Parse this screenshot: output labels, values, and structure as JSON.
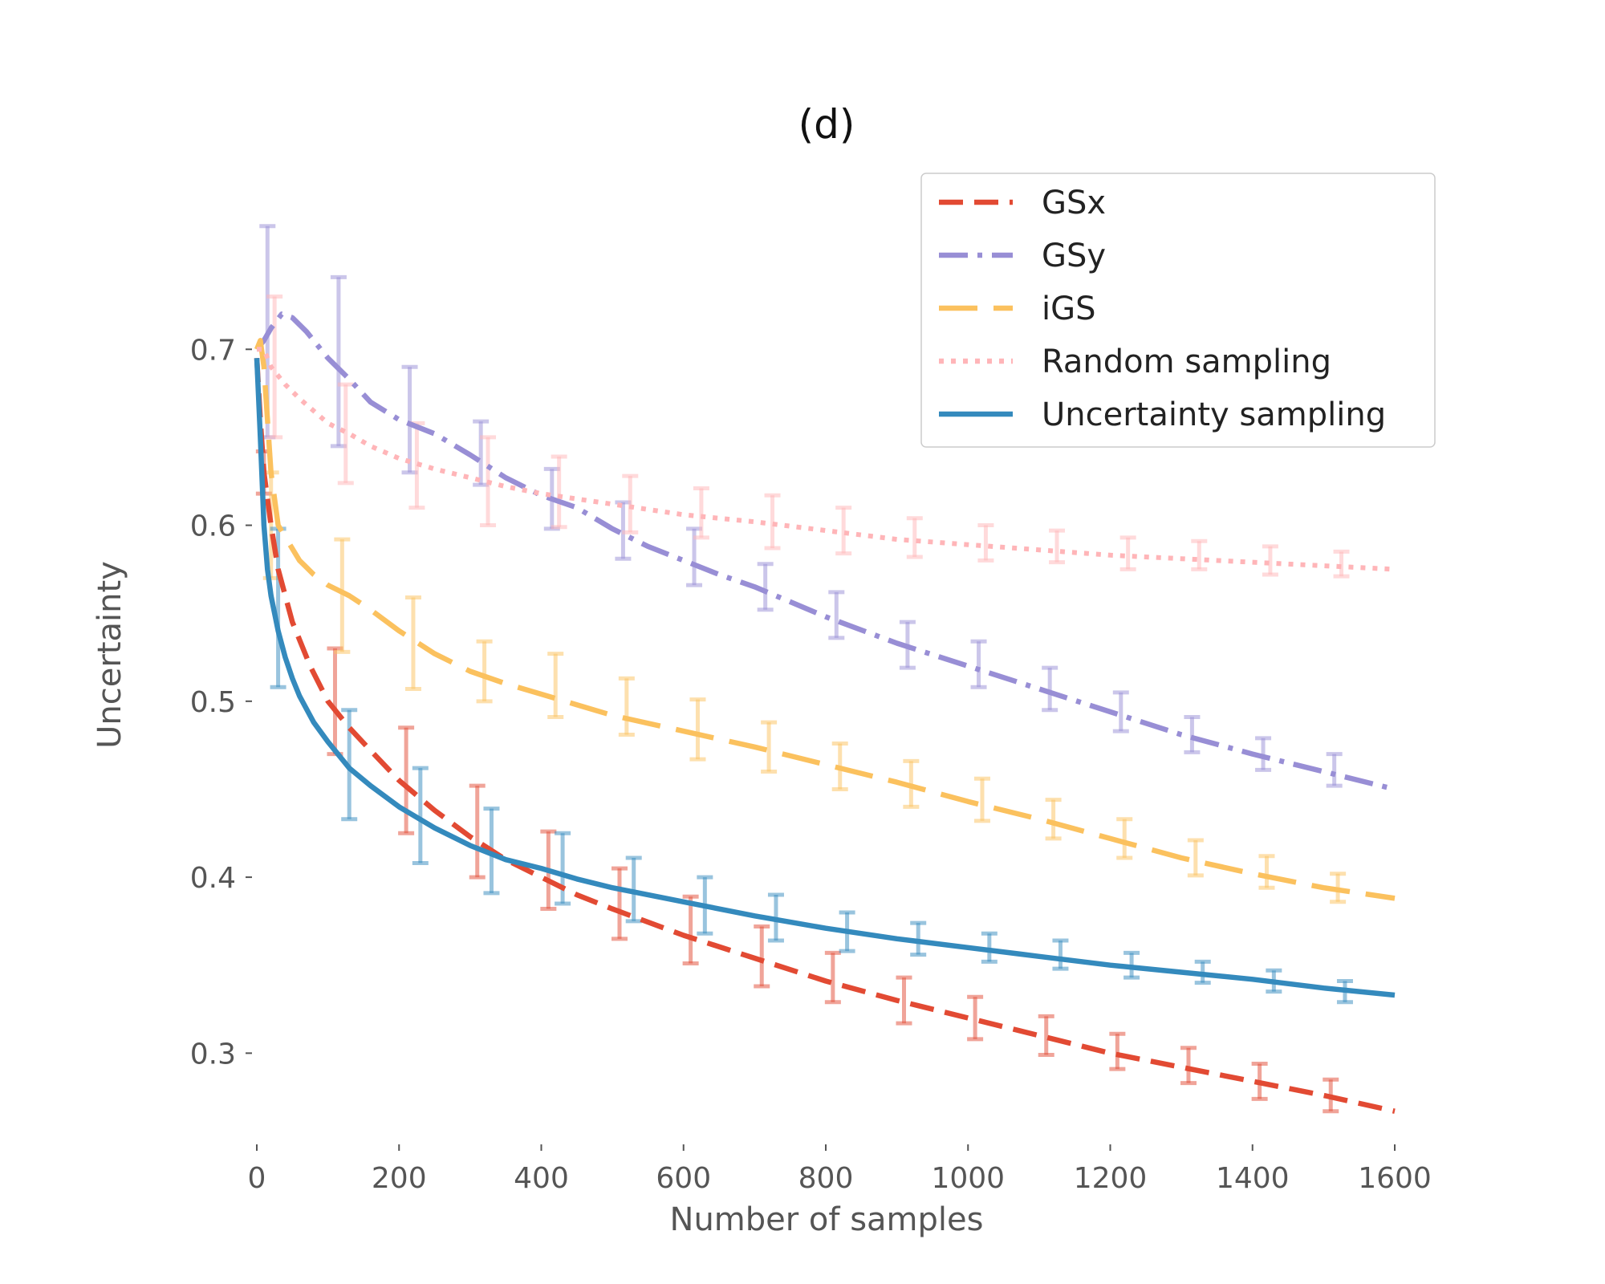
{
  "chart_data": {
    "type": "line",
    "title": "(d)",
    "xlabel": "Number of samples",
    "ylabel": "Uncertainty",
    "xlim": [
      0,
      1600
    ],
    "ylim": [
      0.25,
      0.8
    ],
    "xticks": [
      0,
      200,
      400,
      600,
      800,
      1000,
      1200,
      1400,
      1600
    ],
    "xtick_labels": [
      "0",
      "200",
      "400",
      "600",
      "800",
      "1000",
      "1200",
      "1400",
      "1600"
    ],
    "yticks": [
      0.3,
      0.4,
      0.5,
      0.6,
      0.7
    ],
    "ytick_labels": [
      "0.3",
      "0.4",
      "0.5",
      "0.6",
      "0.7"
    ],
    "grid": false,
    "legend_position": "top-right",
    "series": [
      {
        "name": "GSx",
        "color": "#E24A33",
        "style": "dashed",
        "x": [
          0,
          5,
          10,
          20,
          30,
          50,
          75,
          100,
          130,
          160,
          200,
          250,
          300,
          350,
          400,
          450,
          500,
          600,
          700,
          800,
          900,
          1000,
          1100,
          1200,
          1300,
          1400,
          1500,
          1600
        ],
        "y": [
          0.695,
          0.66,
          0.63,
          0.6,
          0.575,
          0.545,
          0.52,
          0.5,
          0.485,
          0.472,
          0.455,
          0.438,
          0.423,
          0.41,
          0.4,
          0.39,
          0.382,
          0.367,
          0.354,
          0.341,
          0.33,
          0.32,
          0.31,
          0.3,
          0.292,
          0.284,
          0.276,
          0.267
        ],
        "errorbars": [
          {
            "x": 10,
            "y": 0.63,
            "err": 0.012
          },
          {
            "x": 110,
            "y": 0.5,
            "err": 0.03
          },
          {
            "x": 210,
            "y": 0.455,
            "err": 0.03
          },
          {
            "x": 310,
            "y": 0.426,
            "err": 0.026
          },
          {
            "x": 410,
            "y": 0.404,
            "err": 0.022
          },
          {
            "x": 510,
            "y": 0.385,
            "err": 0.02
          },
          {
            "x": 610,
            "y": 0.37,
            "err": 0.019
          },
          {
            "x": 710,
            "y": 0.355,
            "err": 0.017
          },
          {
            "x": 810,
            "y": 0.343,
            "err": 0.014
          },
          {
            "x": 910,
            "y": 0.33,
            "err": 0.013
          },
          {
            "x": 1010,
            "y": 0.32,
            "err": 0.012
          },
          {
            "x": 1110,
            "y": 0.31,
            "err": 0.011
          },
          {
            "x": 1210,
            "y": 0.301,
            "err": 0.01
          },
          {
            "x": 1310,
            "y": 0.293,
            "err": 0.01
          },
          {
            "x": 1410,
            "y": 0.284,
            "err": 0.01
          },
          {
            "x": 1510,
            "y": 0.276,
            "err": 0.009
          }
        ]
      },
      {
        "name": "GSy",
        "color": "#988ED5",
        "style": "dashdot",
        "x": [
          0,
          10,
          20,
          35,
          50,
          70,
          100,
          130,
          160,
          200,
          250,
          300,
          350,
          400,
          450,
          500,
          550,
          600,
          650,
          700,
          800,
          900,
          1000,
          1100,
          1200,
          1300,
          1400,
          1500,
          1600
        ],
        "y": [
          0.7,
          0.705,
          0.712,
          0.72,
          0.718,
          0.71,
          0.695,
          0.683,
          0.67,
          0.66,
          0.652,
          0.64,
          0.627,
          0.617,
          0.61,
          0.598,
          0.588,
          0.58,
          0.572,
          0.565,
          0.548,
          0.533,
          0.52,
          0.507,
          0.494,
          0.481,
          0.47,
          0.46,
          0.45
        ],
        "errorbars": [
          {
            "x": 15,
            "y": 0.71,
            "err": 0.06
          },
          {
            "x": 115,
            "y": 0.693,
            "err": 0.048
          },
          {
            "x": 215,
            "y": 0.66,
            "err": 0.03
          },
          {
            "x": 315,
            "y": 0.641,
            "err": 0.018
          },
          {
            "x": 415,
            "y": 0.615,
            "err": 0.017
          },
          {
            "x": 515,
            "y": 0.597,
            "err": 0.016
          },
          {
            "x": 615,
            "y": 0.582,
            "err": 0.016
          },
          {
            "x": 715,
            "y": 0.565,
            "err": 0.013
          },
          {
            "x": 815,
            "y": 0.549,
            "err": 0.013
          },
          {
            "x": 915,
            "y": 0.532,
            "err": 0.013
          },
          {
            "x": 1015,
            "y": 0.521,
            "err": 0.013
          },
          {
            "x": 1115,
            "y": 0.507,
            "err": 0.012
          },
          {
            "x": 1215,
            "y": 0.494,
            "err": 0.011
          },
          {
            "x": 1315,
            "y": 0.481,
            "err": 0.01
          },
          {
            "x": 1415,
            "y": 0.47,
            "err": 0.009
          },
          {
            "x": 1515,
            "y": 0.461,
            "err": 0.009
          }
        ]
      },
      {
        "name": "iGS",
        "color": "#FBC15E",
        "style": "dashed-long",
        "x": [
          0,
          5,
          10,
          20,
          30,
          45,
          60,
          80,
          100,
          130,
          160,
          200,
          250,
          300,
          350,
          400,
          450,
          500,
          600,
          700,
          800,
          900,
          1000,
          1100,
          1200,
          1300,
          1400,
          1500,
          1600
        ],
        "y": [
          0.7,
          0.705,
          0.69,
          0.63,
          0.6,
          0.59,
          0.58,
          0.572,
          0.566,
          0.56,
          0.552,
          0.54,
          0.527,
          0.517,
          0.51,
          0.504,
          0.498,
          0.492,
          0.483,
          0.474,
          0.464,
          0.454,
          0.443,
          0.433,
          0.422,
          0.411,
          0.402,
          0.394,
          0.388
        ],
        "errorbars": [
          {
            "x": 20,
            "y": 0.6,
            "err": 0.03
          },
          {
            "x": 120,
            "y": 0.56,
            "err": 0.032
          },
          {
            "x": 220,
            "y": 0.533,
            "err": 0.026
          },
          {
            "x": 320,
            "y": 0.517,
            "err": 0.017
          },
          {
            "x": 420,
            "y": 0.509,
            "err": 0.018
          },
          {
            "x": 520,
            "y": 0.497,
            "err": 0.016
          },
          {
            "x": 620,
            "y": 0.484,
            "err": 0.017
          },
          {
            "x": 720,
            "y": 0.474,
            "err": 0.014
          },
          {
            "x": 820,
            "y": 0.463,
            "err": 0.013
          },
          {
            "x": 920,
            "y": 0.453,
            "err": 0.013
          },
          {
            "x": 1020,
            "y": 0.444,
            "err": 0.012
          },
          {
            "x": 1120,
            "y": 0.433,
            "err": 0.011
          },
          {
            "x": 1220,
            "y": 0.422,
            "err": 0.011
          },
          {
            "x": 1320,
            "y": 0.411,
            "err": 0.01
          },
          {
            "x": 1420,
            "y": 0.403,
            "err": 0.009
          },
          {
            "x": 1520,
            "y": 0.394,
            "err": 0.008
          }
        ]
      },
      {
        "name": "Random sampling",
        "color": "#FFB5B8",
        "style": "dotted",
        "x": [
          0,
          10,
          20,
          40,
          60,
          80,
          100,
          130,
          160,
          200,
          250,
          300,
          350,
          400,
          450,
          500,
          600,
          700,
          800,
          900,
          1000,
          1100,
          1200,
          1300,
          1400,
          1500,
          1600
        ],
        "y": [
          0.7,
          0.7,
          0.69,
          0.68,
          0.672,
          0.665,
          0.658,
          0.652,
          0.645,
          0.638,
          0.632,
          0.627,
          0.622,
          0.618,
          0.615,
          0.612,
          0.606,
          0.602,
          0.597,
          0.592,
          0.589,
          0.586,
          0.583,
          0.581,
          0.579,
          0.577,
          0.575
        ],
        "errorbars": [
          {
            "x": 25,
            "y": 0.69,
            "err": 0.04
          },
          {
            "x": 125,
            "y": 0.652,
            "err": 0.028
          },
          {
            "x": 225,
            "y": 0.634,
            "err": 0.024
          },
          {
            "x": 325,
            "y": 0.625,
            "err": 0.025
          },
          {
            "x": 425,
            "y": 0.619,
            "err": 0.02
          },
          {
            "x": 525,
            "y": 0.612,
            "err": 0.016
          },
          {
            "x": 625,
            "y": 0.607,
            "err": 0.014
          },
          {
            "x": 725,
            "y": 0.602,
            "err": 0.015
          },
          {
            "x": 825,
            "y": 0.597,
            "err": 0.013
          },
          {
            "x": 925,
            "y": 0.593,
            "err": 0.011
          },
          {
            "x": 1025,
            "y": 0.59,
            "err": 0.01
          },
          {
            "x": 1125,
            "y": 0.588,
            "err": 0.009
          },
          {
            "x": 1225,
            "y": 0.584,
            "err": 0.009
          },
          {
            "x": 1325,
            "y": 0.583,
            "err": 0.008
          },
          {
            "x": 1425,
            "y": 0.58,
            "err": 0.008
          },
          {
            "x": 1525,
            "y": 0.578,
            "err": 0.007
          }
        ]
      },
      {
        "name": "Uncertainty sampling",
        "color": "#348ABD",
        "style": "solid",
        "x": [
          0,
          5,
          10,
          15,
          20,
          30,
          40,
          50,
          60,
          80,
          100,
          130,
          160,
          200,
          250,
          300,
          350,
          400,
          450,
          500,
          600,
          700,
          800,
          900,
          1000,
          1100,
          1200,
          1300,
          1400,
          1500,
          1600
        ],
        "y": [
          0.695,
          0.65,
          0.6,
          0.575,
          0.56,
          0.54,
          0.525,
          0.513,
          0.503,
          0.488,
          0.477,
          0.462,
          0.452,
          0.44,
          0.428,
          0.418,
          0.41,
          0.405,
          0.399,
          0.394,
          0.386,
          0.378,
          0.371,
          0.365,
          0.36,
          0.355,
          0.35,
          0.346,
          0.342,
          0.337,
          0.333
        ],
        "errorbars": [
          {
            "x": 30,
            "y": 0.553,
            "err": 0.045
          },
          {
            "x": 130,
            "y": 0.464,
            "err": 0.031
          },
          {
            "x": 230,
            "y": 0.435,
            "err": 0.027
          },
          {
            "x": 330,
            "y": 0.415,
            "err": 0.024
          },
          {
            "x": 430,
            "y": 0.405,
            "err": 0.02
          },
          {
            "x": 530,
            "y": 0.393,
            "err": 0.018
          },
          {
            "x": 630,
            "y": 0.384,
            "err": 0.016
          },
          {
            "x": 730,
            "y": 0.377,
            "err": 0.013
          },
          {
            "x": 830,
            "y": 0.369,
            "err": 0.011
          },
          {
            "x": 930,
            "y": 0.365,
            "err": 0.009
          },
          {
            "x": 1030,
            "y": 0.36,
            "err": 0.008
          },
          {
            "x": 1130,
            "y": 0.356,
            "err": 0.008
          },
          {
            "x": 1230,
            "y": 0.35,
            "err": 0.007
          },
          {
            "x": 1330,
            "y": 0.346,
            "err": 0.006
          },
          {
            "x": 1430,
            "y": 0.341,
            "err": 0.006
          },
          {
            "x": 1530,
            "y": 0.335,
            "err": 0.006
          }
        ]
      }
    ]
  }
}
